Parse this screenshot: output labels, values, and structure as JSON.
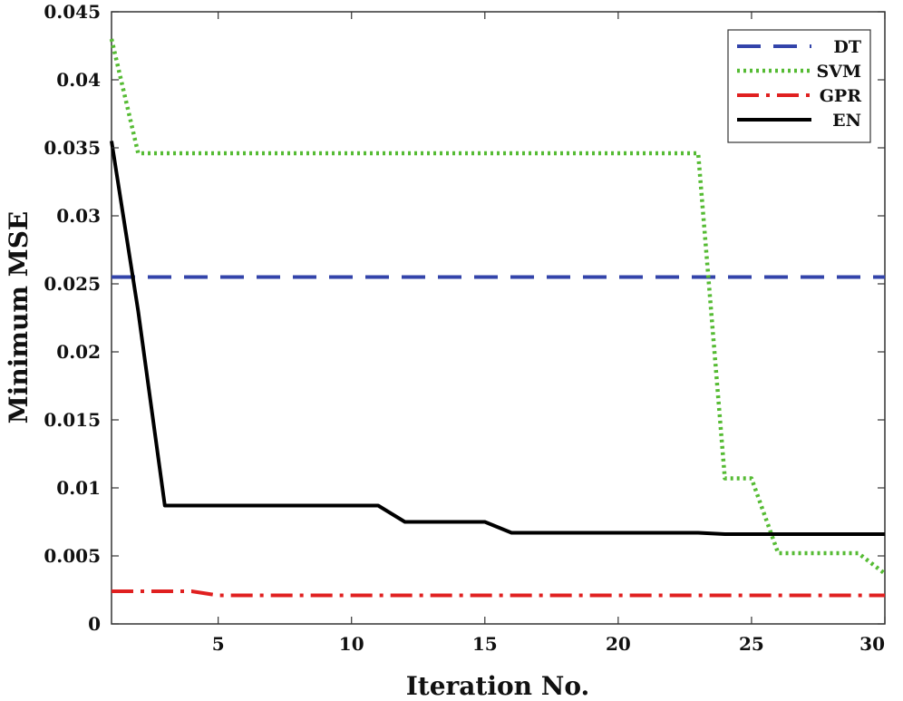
{
  "chart_data": {
    "type": "line",
    "title": "",
    "xlabel": "Iteration No.",
    "ylabel": "Minimum MSE",
    "xlim": [
      1,
      30
    ],
    "ylim": [
      0,
      0.045
    ],
    "xticks": [
      5,
      10,
      15,
      20,
      25,
      30
    ],
    "xtick_labels": [
      "5",
      "10",
      "15",
      "20",
      "25",
      "30"
    ],
    "yticks": [
      0,
      0.005,
      0.01,
      0.015,
      0.02,
      0.025,
      0.03,
      0.035,
      0.04,
      0.045
    ],
    "ytick_labels": [
      "0",
      "0.005",
      "0.01",
      "0.015",
      "0.02",
      "0.025",
      "0.03",
      "0.035",
      "0.04",
      "0.045"
    ],
    "grid": false,
    "legend_position": "top-right",
    "series": [
      {
        "name": "DT",
        "color": "#3344aa",
        "style": "dashed",
        "points": [
          [
            1,
            0.0255
          ],
          [
            30,
            0.0255
          ]
        ]
      },
      {
        "name": "SVM",
        "color": "#55bb33",
        "style": "dotted",
        "points": [
          [
            1,
            0.043
          ],
          [
            2,
            0.0346
          ],
          [
            23,
            0.0346
          ],
          [
            24,
            0.0107
          ],
          [
            25,
            0.0107
          ],
          [
            26,
            0.0052
          ],
          [
            29,
            0.0052
          ],
          [
            30,
            0.0037
          ]
        ]
      },
      {
        "name": "GPR",
        "color": "#e02020",
        "style": "dashdot",
        "points": [
          [
            1,
            0.0024
          ],
          [
            4,
            0.0024
          ],
          [
            5,
            0.0021
          ],
          [
            30,
            0.0021
          ]
        ]
      },
      {
        "name": "EN",
        "color": "#000000",
        "style": "solid",
        "points": [
          [
            1,
            0.0355
          ],
          [
            2,
            0.023
          ],
          [
            3,
            0.0087
          ],
          [
            11,
            0.0087
          ],
          [
            12,
            0.0075
          ],
          [
            15,
            0.0075
          ],
          [
            16,
            0.0067
          ],
          [
            23,
            0.0067
          ],
          [
            24,
            0.0066
          ],
          [
            30,
            0.0066
          ]
        ]
      }
    ]
  }
}
